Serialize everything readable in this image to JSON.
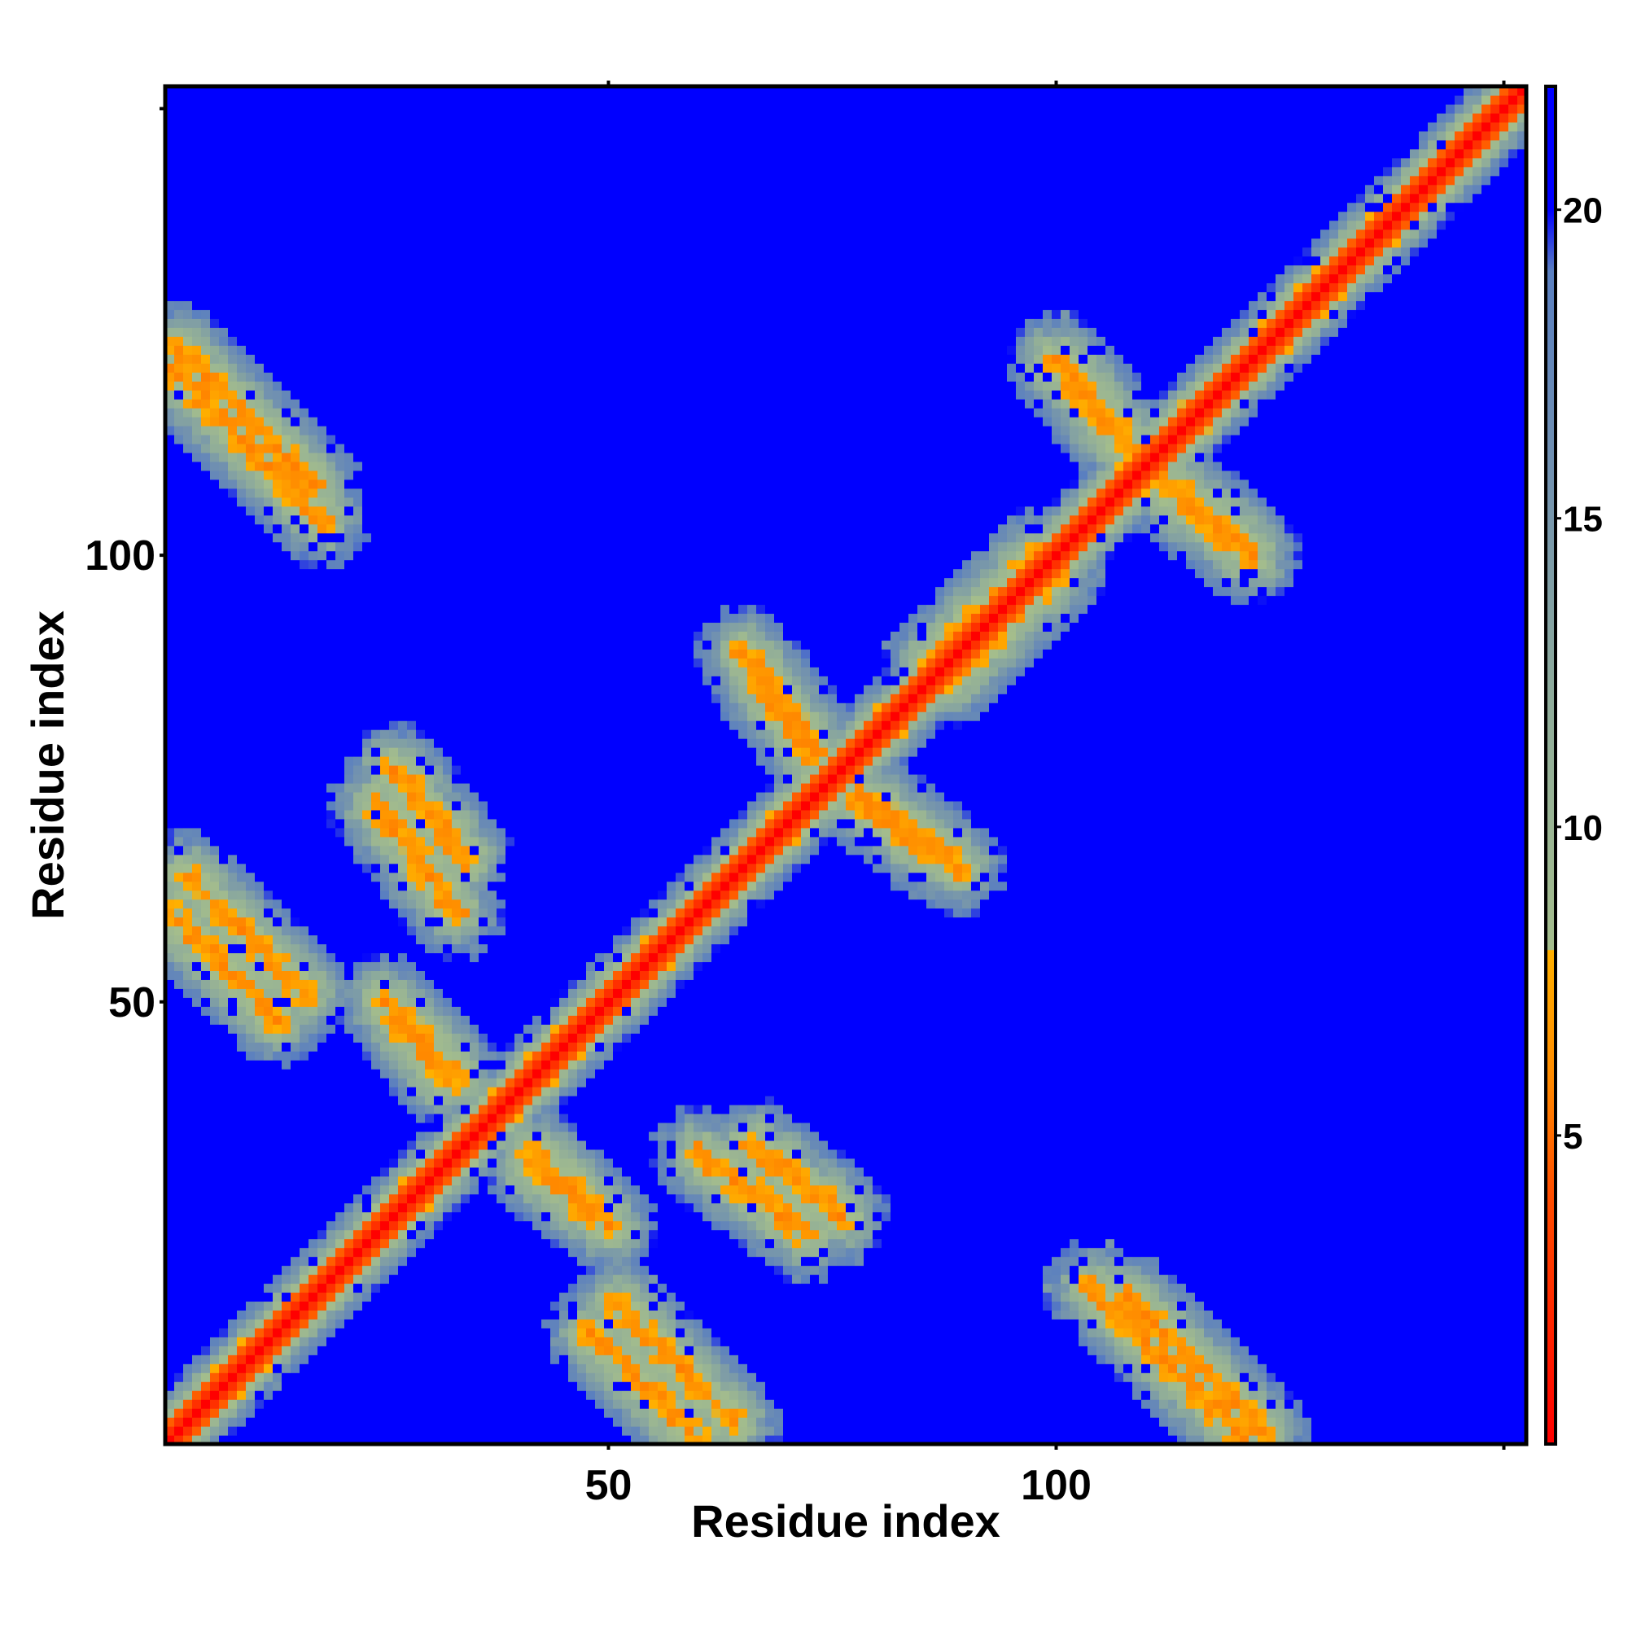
{
  "chart_data": {
    "type": "heatmap",
    "title": "",
    "xlabel": "Residue index",
    "ylabel": "Residue index",
    "n_residues": 152,
    "xlim": [
      0.5,
      152.5
    ],
    "ylim": [
      0.5,
      152.5
    ],
    "x_ticks": [
      50,
      100,
      150
    ],
    "x_tick_labels": [
      "50",
      "100",
      ""
    ],
    "y_ticks": [
      50,
      100,
      150
    ],
    "y_tick_labels": [
      "50",
      "100",
      ""
    ],
    "colorbar": {
      "ticks": [
        5,
        10,
        15,
        20
      ],
      "tick_labels": [
        "5",
        "10",
        "15",
        "20"
      ],
      "range": [
        0,
        22
      ],
      "stops": [
        {
          "value": 0.0,
          "color": "#ff0000"
        },
        {
          "value": 4.0,
          "color": "#ff4d00"
        },
        {
          "value": 6.0,
          "color": "#ff8c00"
        },
        {
          "value": 8.0,
          "color": "#ffb000"
        },
        {
          "value": 8.01,
          "color": "#a4bd8c"
        },
        {
          "value": 12.0,
          "color": "#8fac9a"
        },
        {
          "value": 16.0,
          "color": "#6f8fb1"
        },
        {
          "value": 19.0,
          "color": "#5a7fc0"
        },
        {
          "value": 20.0,
          "color": "#0000ff"
        },
        {
          "value": 22.0,
          "color": "#0000ff"
        }
      ]
    },
    "value_meaning": "pairwise residue distance (diagonal = 0)",
    "off_diagonal_contacts": [
      {
        "i_range": [
          1,
          18
        ],
        "j_range": [
          104,
          121
        ],
        "orientation": "anti"
      },
      {
        "i_range": [
          1,
          13
        ],
        "j_range": [
          48,
          60
        ],
        "orientation": "anti"
      },
      {
        "i_range": [
          24,
          33
        ],
        "j_range": [
          60,
          72
        ],
        "orientation": "anti"
      },
      {
        "i_range": [
          27,
          33
        ],
        "j_range": [
          42,
          48
        ],
        "orientation": "anti"
      },
      {
        "i_range": [
          41,
          50
        ],
        "j_range": [
          25,
          32
        ],
        "orientation": "anti"
      },
      {
        "i_range": [
          51,
          64
        ],
        "j_range": [
          3,
          16
        ],
        "orientation": "anti"
      },
      {
        "i_range": [
          67,
          74
        ],
        "j_range": [
          76,
          86
        ],
        "orientation": "anti"
      },
      {
        "i_range": [
          66,
          76
        ],
        "j_range": [
          26,
          34
        ],
        "orientation": "anti"
      },
      {
        "i_range": [
          80,
          89
        ],
        "j_range": [
          65,
          72
        ],
        "orientation": "anti"
      },
      {
        "i_range": [
          86,
          98
        ],
        "j_range": [
          88,
          100
        ],
        "orientation": "parallel"
      },
      {
        "i_range": [
          100,
          108
        ],
        "j_range": [
          113,
          122
        ],
        "orientation": "anti"
      },
      {
        "i_range": [
          110,
          121
        ],
        "j_range": [
          100,
          110
        ],
        "orientation": "anti"
      },
      {
        "i_range": [
          108,
          123
        ],
        "j_range": [
          2,
          17
        ],
        "orientation": "anti"
      }
    ]
  }
}
